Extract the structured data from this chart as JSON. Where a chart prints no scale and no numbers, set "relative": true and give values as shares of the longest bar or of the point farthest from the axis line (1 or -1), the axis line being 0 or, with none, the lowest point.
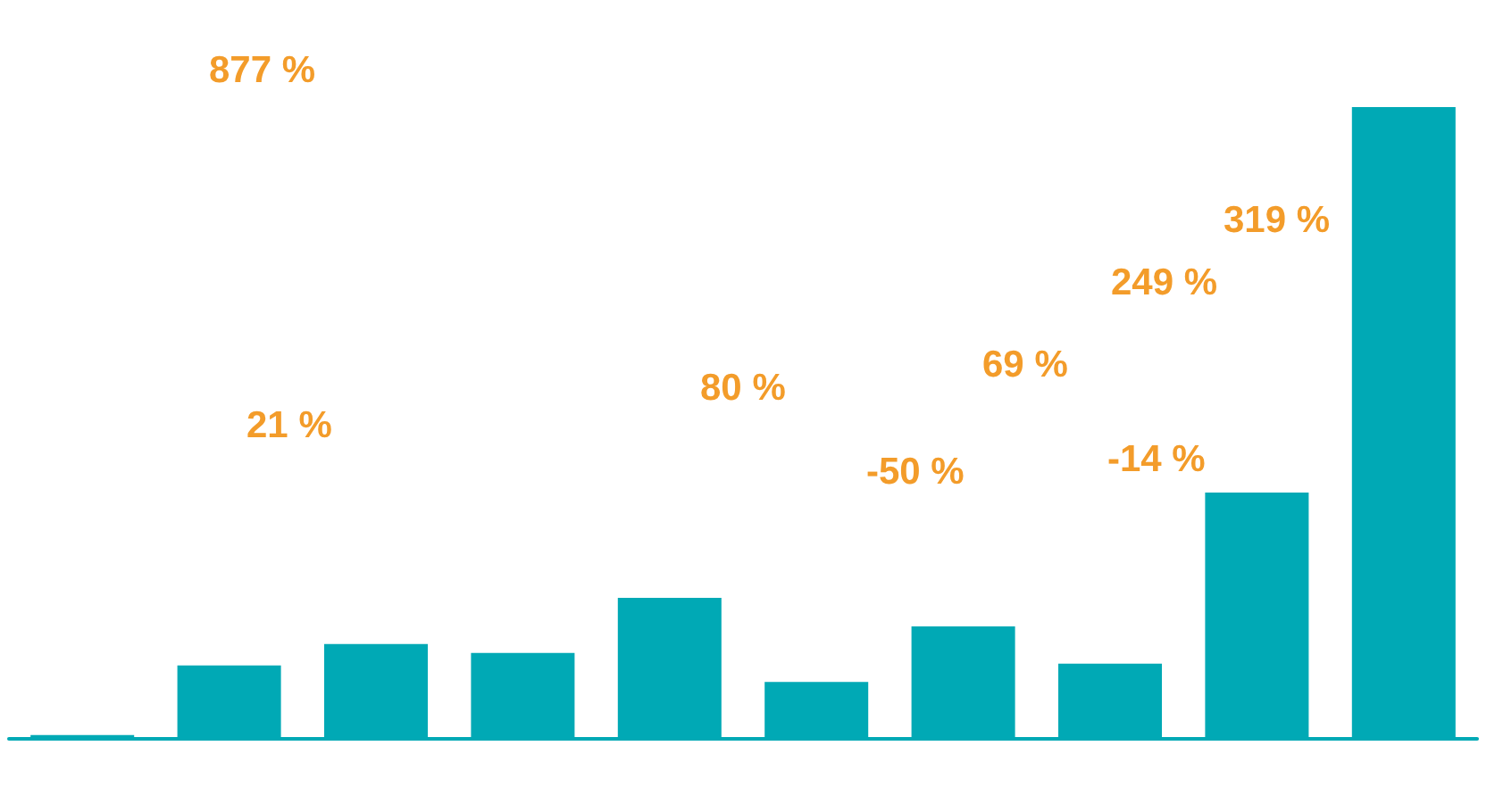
{
  "chart_data": {
    "type": "bar",
    "relative": true,
    "categories": [
      null,
      null,
      null,
      null,
      null,
      null,
      null,
      null,
      null,
      null
    ],
    "values": [
      0.006,
      0.116,
      0.15,
      0.136,
      0.223,
      0.09,
      0.178,
      0.119,
      0.39,
      1
    ],
    "color": "#00a9b5",
    "annotations": [
      "877 %",
      "21 %",
      "80 %",
      "-50 %",
      "69 %",
      "-14 %",
      "249 %",
      "319 %"
    ],
    "data_labels": false
  }
}
